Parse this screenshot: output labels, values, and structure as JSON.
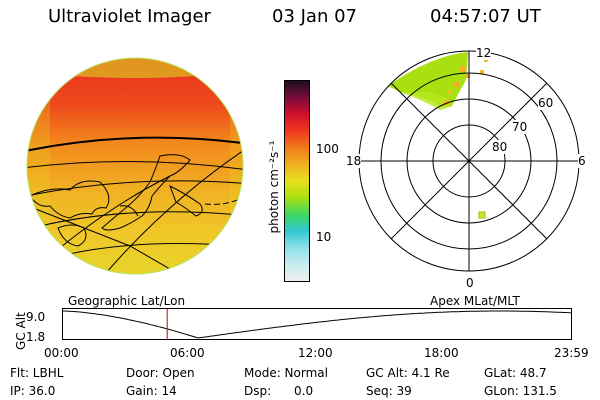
{
  "header": {
    "title": "Ultraviolet Imager",
    "date": "03 Jan 07",
    "time": "04:57:07 UT"
  },
  "colorbar": {
    "units_label": "photon cm⁻²s⁻¹",
    "ticks": [
      "100",
      "10"
    ],
    "colors": [
      "#1a1020",
      "#7a0c3c",
      "#d0102a",
      "#f03820",
      "#f07a1a",
      "#f0b020",
      "#e8e020",
      "#a8e010",
      "#40d860",
      "#30c8d0",
      "#8ee0e8",
      "#c8ecf0",
      "#f0f0f0"
    ]
  },
  "polar_plot": {
    "mlt_labels": {
      "top": "12",
      "left": "18",
      "right": "6",
      "bottom": "0"
    },
    "lat_labels": [
      "60",
      "70",
      "80"
    ]
  },
  "timeline": {
    "left_label": "Geographic Lat/Lon",
    "right_label": "Apex MLat/MLT",
    "y_axis_title": "GC Alt",
    "y_ticks": [
      "9.0",
      "1.8"
    ],
    "x_ticks": [
      "00:00",
      "06:00",
      "12:00",
      "18:00",
      "23:59"
    ],
    "current_time_hours": 4.95,
    "cursor_color": "#cc0000"
  },
  "info": {
    "row1": {
      "filter": "Flt: LBHL",
      "door": "Door: Open",
      "mode": "Mode: Normal",
      "gc_alt": "GC Alt: 4.1 Re",
      "glat": "GLat:  48.7"
    },
    "row2": {
      "ip": "IP: 36.0",
      "gain": "Gain: 14",
      "dsp": "Dsp:      0.0",
      "seq": "Seq: 39",
      "glon": "GLon: 131.5"
    }
  }
}
